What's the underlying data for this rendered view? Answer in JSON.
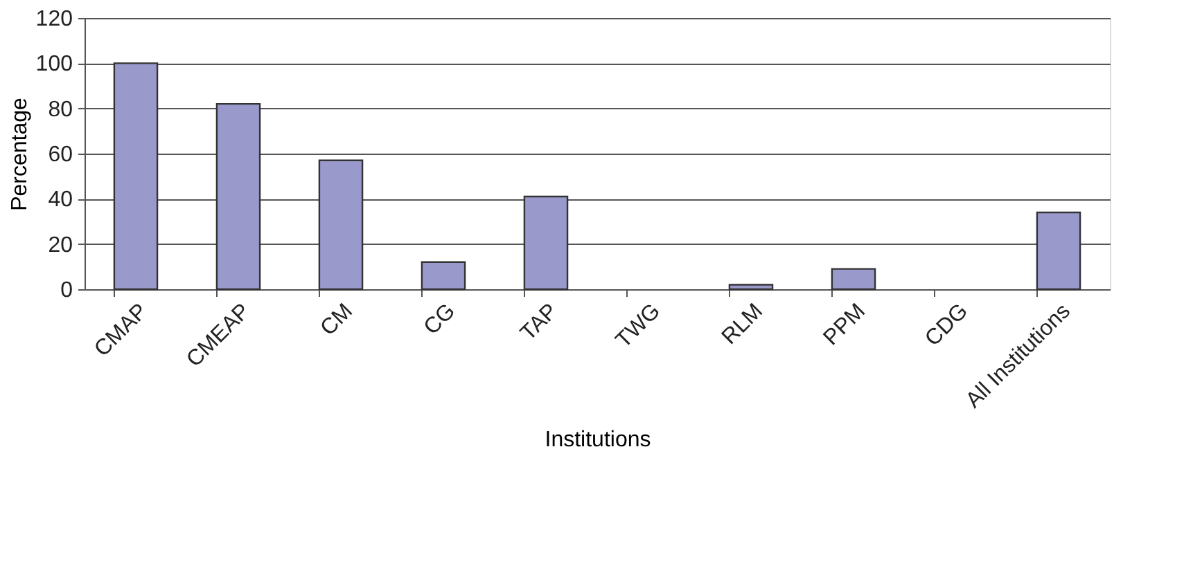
{
  "chart_data": {
    "type": "bar",
    "xlabel": "Institutions",
    "ylabel": "Percentage",
    "categories": [
      "CMAP",
      "CMEAP",
      "CM",
      "CG",
      "TAP",
      "TWG",
      "RLM",
      "PPM",
      "CDG",
      "All Institutions"
    ],
    "values": [
      100,
      82,
      57,
      12,
      41,
      0,
      2,
      9,
      0,
      34
    ],
    "color": "#9999cc",
    "ylim": [
      0,
      120
    ],
    "yticks": [
      0,
      20,
      40,
      60,
      80,
      100,
      120
    ],
    "grid": "y"
  }
}
